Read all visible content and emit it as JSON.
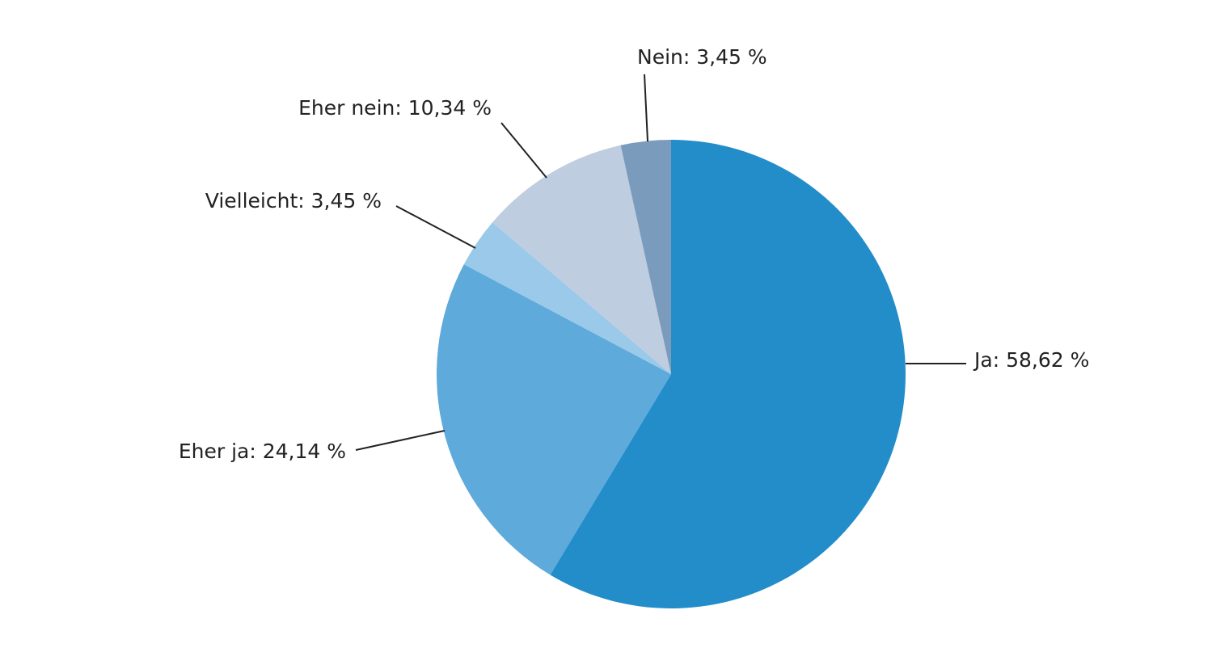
{
  "chart_data": {
    "type": "pie",
    "values": [
      58.62,
      24.14,
      3.45,
      10.34,
      3.45
    ],
    "value_labels": [
      "Ja: 58,62 %",
      "Eher ja: 24,14 %",
      "Vielleicht: 3,45 %",
      "Eher nein: 10,34 %",
      "Nein: 3,45 %"
    ],
    "colors": [
      "#238dca",
      "#5eaadb",
      "#9ac9e9",
      "#bfcde0",
      "#7b9bbd"
    ]
  }
}
